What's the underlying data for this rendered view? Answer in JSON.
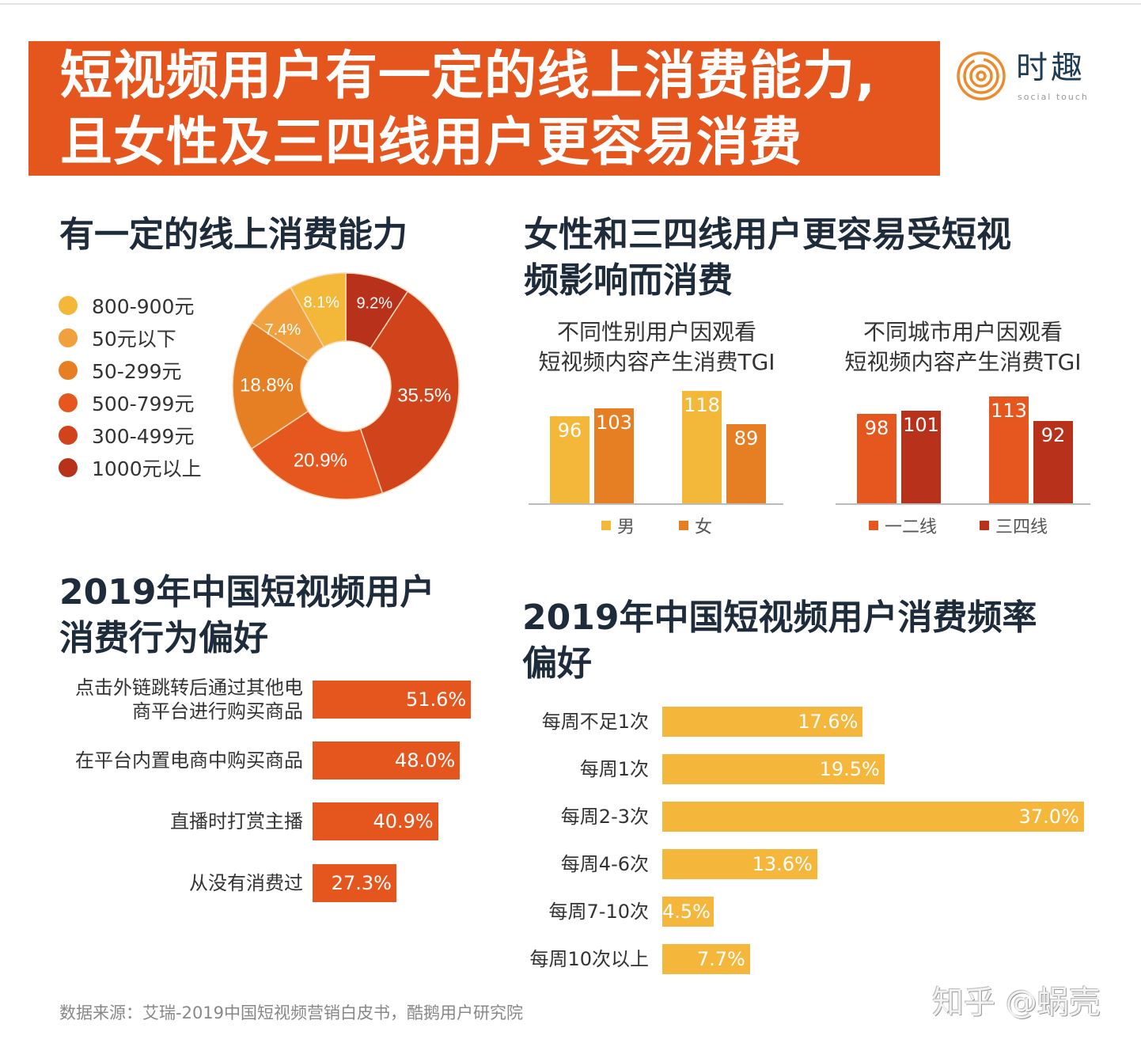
{
  "header": {
    "title_line1": "短视频用户有一定的线上消费能力,",
    "title_line2": "且女性及三四线用户更容易消费"
  },
  "logo": {
    "name": "时趣",
    "tagline": "social touch",
    "icon": "concentric-rings-logo"
  },
  "sections": {
    "spending": "有一定的线上消费能力",
    "tgi_line1": "女性和三四线用户更容易受短视",
    "tgi_line2": "频影响而消费",
    "behavior_line1": "2019年中国短视频用户",
    "behavior_line2": "消费行为偏好",
    "frequency_line1": "2019年中国短视频用户消费频率",
    "frequency_line2": "偏好"
  },
  "colors": {
    "banner": "#e5561e",
    "title": "#1d2b3a"
  },
  "chart_data": [
    {
      "type": "pie",
      "variant": "donut",
      "categories": [
        "800-900元",
        "50元以下",
        "50-299元",
        "500-799元",
        "300-499元",
        "1000元以上"
      ],
      "values": [
        8.1,
        7.4,
        18.8,
        20.9,
        35.5,
        9.2
      ],
      "labels": [
        "8.1%",
        "7.4%",
        "18.8%",
        "20.9%",
        "35.5%",
        "9.2%"
      ],
      "colors": [
        "#f3b73a",
        "#f0a03c",
        "#e67f24",
        "#e5571e",
        "#d1431a",
        "#b8311a"
      ],
      "legend": "left"
    },
    {
      "type": "bar",
      "title_line1": "不同性别用户因观看",
      "title_line2": "短视频内容产生消费TGI",
      "categories": [
        "",
        ""
      ],
      "series": [
        {
          "name": "男",
          "values": [
            96,
            118
          ],
          "color": "#f3b73a"
        },
        {
          "name": "女",
          "values": [
            103,
            89
          ],
          "color": "#e67f24"
        }
      ],
      "legend": "bottom"
    },
    {
      "type": "bar",
      "title_line1": "不同城市用户因观看",
      "title_line2": "短视频内容产生消费TGI",
      "categories": [
        "",
        ""
      ],
      "series": [
        {
          "name": "一二线",
          "values": [
            98,
            113
          ],
          "color": "#e5571e"
        },
        {
          "name": "三四线",
          "values": [
            101,
            92
          ],
          "color": "#b8311a"
        }
      ],
      "legend": "bottom"
    },
    {
      "type": "bar",
      "orientation": "horizontal",
      "categories": [
        "点击外链跳转后通过其他电\n商平台进行购买商品",
        "在平台内置电商中购买商品",
        "直播时打赏主播",
        "从没有消费过"
      ],
      "values": [
        51.6,
        48.0,
        40.9,
        27.3
      ],
      "labels": [
        "51.6%",
        "48.0%",
        "40.9%",
        "27.3%"
      ],
      "color": "#e5561e"
    },
    {
      "type": "bar",
      "orientation": "horizontal",
      "categories": [
        "每周不足1次",
        "每周1次",
        "每周2-3次",
        "每周4-6次",
        "每周7-10次",
        "每周10次以上"
      ],
      "values": [
        17.6,
        19.5,
        37.0,
        13.6,
        4.5,
        7.7
      ],
      "labels": [
        "17.6%",
        "19.5%",
        "37.0%",
        "13.6%",
        "4.5%",
        "7.7%"
      ],
      "color": "#f4b63b"
    }
  ],
  "footer": {
    "source": "数据来源：艾瑞-2019中国短视频营销白皮书，酷鹅用户研究院",
    "watermark": "知乎 @蜗壳"
  }
}
